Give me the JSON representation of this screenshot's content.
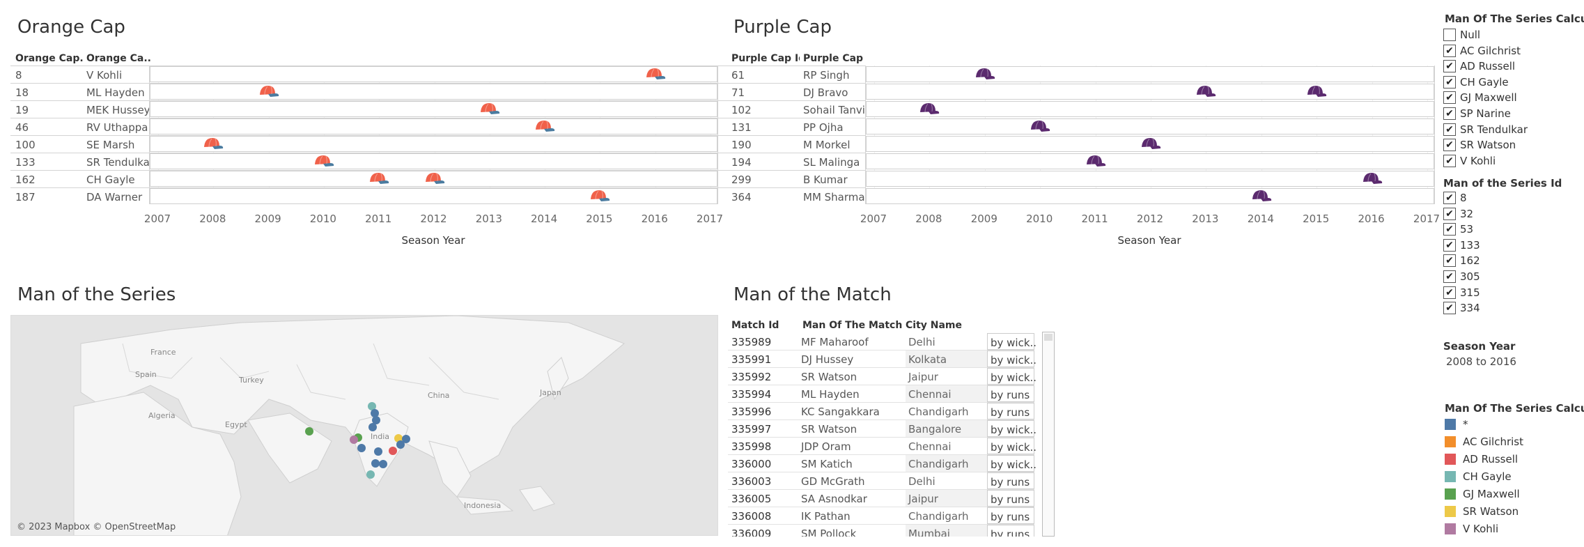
{
  "orange_cap": {
    "title": "Orange Cap",
    "col_id": "Orange Cap..",
    "col_name": "Orange Ca..",
    "axis_title": "Season Year",
    "ticks": [
      "2007",
      "2008",
      "2009",
      "2010",
      "2011",
      "2012",
      "2013",
      "2014",
      "2015",
      "2016",
      "2017"
    ],
    "cap_color": "#f0614a",
    "brim_color": "#4b7ca0",
    "rows": [
      {
        "id": "8",
        "name": "V Kohli",
        "years": [
          2016
        ]
      },
      {
        "id": "18",
        "name": "ML Hayden",
        "years": [
          2009
        ]
      },
      {
        "id": "19",
        "name": "MEK Hussey",
        "years": [
          2013
        ]
      },
      {
        "id": "46",
        "name": "RV Uthappa",
        "years": [
          2014
        ]
      },
      {
        "id": "100",
        "name": "SE Marsh",
        "years": [
          2008
        ]
      },
      {
        "id": "133",
        "name": "SR Tendulkar",
        "years": [
          2010
        ]
      },
      {
        "id": "162",
        "name": "CH Gayle",
        "years": [
          2011,
          2012
        ]
      },
      {
        "id": "187",
        "name": "DA Warner",
        "years": [
          2015
        ]
      }
    ]
  },
  "purple_cap": {
    "title": "Purple Cap",
    "col_id": "Purple Cap Id",
    "col_name": "Purple Cap ..",
    "axis_title": "Season Year",
    "ticks": [
      "2007",
      "2008",
      "2009",
      "2010",
      "2011",
      "2012",
      "2013",
      "2014",
      "2015",
      "2016",
      "2017"
    ],
    "cap_color": "#5b2a6e",
    "rows": [
      {
        "id": "61",
        "name": "RP Singh",
        "years": [
          2009
        ]
      },
      {
        "id": "71",
        "name": "DJ Bravo",
        "years": [
          2013,
          2015
        ]
      },
      {
        "id": "102",
        "name": "Sohail Tanvir",
        "years": [
          2008
        ]
      },
      {
        "id": "131",
        "name": "PP Ojha",
        "years": [
          2010
        ]
      },
      {
        "id": "190",
        "name": "M Morkel",
        "years": [
          2012
        ]
      },
      {
        "id": "194",
        "name": "SL Malinga",
        "years": [
          2011
        ]
      },
      {
        "id": "299",
        "name": "B Kumar",
        "years": [
          2016
        ]
      },
      {
        "id": "364",
        "name": "MM Sharma",
        "years": [
          2014
        ]
      }
    ]
  },
  "series_map": {
    "title": "Man of the Series",
    "copyright": "© 2023 Mapbox © OpenStreetMap",
    "labels": [
      "France",
      "Spain",
      "Turkey",
      "Algeria",
      "Egypt",
      "India",
      "China",
      "Japan",
      "Indonesia"
    ]
  },
  "match_table": {
    "title": "Man of the Match",
    "col_match": "Match Id",
    "col_mom": "Man Of The Match",
    "col_city": "City Name",
    "rows": [
      {
        "match": "335989",
        "mom": "MF Maharoof",
        "city": "Delhi",
        "result": "by wick.."
      },
      {
        "match": "335991",
        "mom": "DJ Hussey",
        "city": "Kolkata",
        "result": "by wick.."
      },
      {
        "match": "335992",
        "mom": "SR Watson",
        "city": "Jaipur",
        "result": "by wick.."
      },
      {
        "match": "335994",
        "mom": "ML Hayden",
        "city": "Chennai",
        "result": "by runs"
      },
      {
        "match": "335996",
        "mom": "KC Sangakkara",
        "city": "Chandigarh",
        "result": "by runs"
      },
      {
        "match": "335997",
        "mom": "SR Watson",
        "city": "Bangalore",
        "result": "by wick.."
      },
      {
        "match": "335998",
        "mom": "JDP Oram",
        "city": "Chennai",
        "result": "by wick.."
      },
      {
        "match": "336000",
        "mom": "SM Katich",
        "city": "Chandigarh",
        "result": "by wick.."
      },
      {
        "match": "336003",
        "mom": "GD McGrath",
        "city": "Delhi",
        "result": "by runs"
      },
      {
        "match": "336005",
        "mom": "SA Asnodkar",
        "city": "Jaipur",
        "result": "by runs"
      },
      {
        "match": "336008",
        "mom": "IK Pathan",
        "city": "Chandigarh",
        "result": "by runs"
      },
      {
        "match": "336009",
        "mom": "SM Pollock",
        "city": "Mumbai",
        "result": "by runs"
      }
    ]
  },
  "filters": {
    "series_calc": {
      "title": "Man Of The Series Calcul..",
      "items": [
        {
          "label": "Null",
          "checked": false
        },
        {
          "label": "AC Gilchrist",
          "checked": true
        },
        {
          "label": "AD Russell",
          "checked": true
        },
        {
          "label": "CH Gayle",
          "checked": true
        },
        {
          "label": "GJ Maxwell",
          "checked": true
        },
        {
          "label": "SP Narine",
          "checked": true
        },
        {
          "label": "SR Tendulkar",
          "checked": true
        },
        {
          "label": "SR Watson",
          "checked": true
        },
        {
          "label": "V Kohli",
          "checked": true
        }
      ]
    },
    "series_id": {
      "title": "Man of the Series Id",
      "items": [
        {
          "label": "8",
          "checked": true
        },
        {
          "label": "32",
          "checked": true
        },
        {
          "label": "53",
          "checked": true
        },
        {
          "label": "133",
          "checked": true
        },
        {
          "label": "162",
          "checked": true
        },
        {
          "label": "305",
          "checked": true
        },
        {
          "label": "315",
          "checked": true
        },
        {
          "label": "334",
          "checked": true
        }
      ]
    },
    "season_year": {
      "title": "Season Year",
      "value": "2008 to 2016"
    },
    "legend": {
      "title": "Man Of The Series Calcul..",
      "items": [
        {
          "label": "*",
          "color": "#4e79a7"
        },
        {
          "label": "AC Gilchrist",
          "color": "#f28e2b"
        },
        {
          "label": "AD Russell",
          "color": "#e15759"
        },
        {
          "label": "CH Gayle",
          "color": "#76b7b2"
        },
        {
          "label": "GJ Maxwell",
          "color": "#59a14f"
        },
        {
          "label": "SR Watson",
          "color": "#edc948"
        },
        {
          "label": "V Kohli",
          "color": "#b07aa1"
        }
      ]
    }
  },
  "check_glyph": "✔"
}
